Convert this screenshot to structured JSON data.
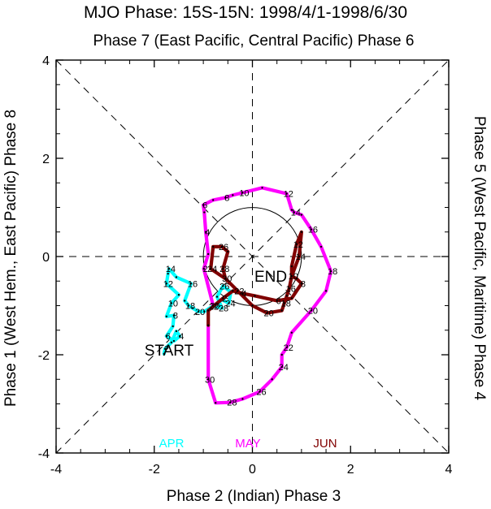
{
  "title": "MJO Phase: 15S-15N: 1998/4/1-1998/6/30",
  "subtitle": "Phase 7 (East Pacific, Central Pacific) Phase 6",
  "colors": {
    "apr": "#00ffff",
    "may": "#ff00ff",
    "jun": "#800000",
    "axis": "#000000"
  },
  "chart_data": {
    "type": "line",
    "title": "MJO Phase: 15S-15N: 1998/4/1-1998/6/30",
    "subtitle": "Phase 7 (East Pacific, Central Pacific) Phase 6",
    "xlabel": "Phase 2 (Indian) Phase 3",
    "ylabel": "Phase 1 (West Hem., East Pacific) Phase 8",
    "ylabel_right": "Phase 5 (West Pacific, Maritime) Phase 4",
    "xlim": [
      -4,
      4
    ],
    "ylim": [
      -4,
      4
    ],
    "x_ticks": [
      "-4",
      "-2",
      "0",
      "2",
      "4"
    ],
    "y_ticks": [
      "-4",
      "-2",
      "0",
      "2",
      "4"
    ],
    "grid": "diagonal and axis dashed lines",
    "legend": [
      "APR",
      "MAY",
      "JUN"
    ],
    "annotations": {
      "start": "START",
      "end": "END"
    },
    "series": [
      {
        "name": "APR",
        "color": "#00ffff",
        "x": [
          -1.8,
          -1.78,
          -1.65,
          -1.55,
          -1.48,
          -1.6,
          -1.75,
          -1.62,
          -1.6,
          -1.75,
          -1.65,
          -1.5,
          -1.75,
          -1.72,
          -1.7,
          -1.55,
          -1.25,
          -1.38,
          -1.3,
          -1.22,
          -1.1,
          -0.98,
          -0.82,
          -0.62,
          -0.48,
          -0.44,
          -0.6,
          -0.72,
          -0.62,
          -0.8
        ],
        "y": [
          -1.98,
          -1.88,
          -1.75,
          -1.52,
          -1.62,
          -1.72,
          -1.62,
          -1.42,
          -1.2,
          -1.22,
          -0.95,
          -0.78,
          -0.55,
          -0.35,
          -0.25,
          -0.42,
          -0.55,
          -0.9,
          -1.0,
          -1.05,
          -1.12,
          -1.12,
          -1.02,
          -0.88,
          -0.95,
          -0.72,
          -0.6,
          -0.82,
          -1.05,
          -1.0
        ]
      },
      {
        "name": "MAY",
        "color": "#ff00ff",
        "x": [
          -0.8,
          -0.99,
          -0.9,
          -0.95,
          -0.98,
          -1.0,
          -0.8,
          -0.55,
          -0.4,
          -0.2,
          0.2,
          0.7,
          0.8,
          0.85,
          1.0,
          1.2,
          1.4,
          1.6,
          1.5,
          1.2,
          0.8,
          0.7,
          0.6,
          0.6,
          0.4,
          0.15,
          -0.2,
          -0.45,
          -0.75,
          -0.9,
          -0.9
        ],
        "y": [
          -1.0,
          -0.25,
          0.05,
          0.5,
          0.9,
          1.05,
          1.15,
          1.2,
          1.25,
          1.3,
          1.4,
          1.28,
          0.95,
          0.9,
          0.85,
          0.55,
          0.2,
          -0.3,
          -0.7,
          -1.1,
          -1.55,
          -1.85,
          -2.0,
          -2.25,
          -2.5,
          -2.75,
          -2.9,
          -2.97,
          -2.98,
          -2.5,
          -1.4
        ]
      },
      {
        "name": "JUN",
        "color": "#800000",
        "x": [
          -0.9,
          -0.9,
          -0.6,
          -0.4,
          -0.2,
          0.05,
          0.5,
          0.8,
          1.0,
          0.9,
          0.8,
          0.8,
          0.9,
          1.0,
          0.95,
          0.8,
          0.75,
          0.7,
          0.65,
          0.6,
          0.3,
          0.0,
          -0.3,
          -0.55,
          -0.85,
          -0.8,
          -0.62,
          -0.5,
          -0.6,
          -0.55
        ],
        "y": [
          -1.4,
          -1.1,
          -0.85,
          -0.7,
          -0.75,
          -0.8,
          -0.9,
          -0.85,
          -0.55,
          -0.45,
          -0.4,
          -0.2,
          0.25,
          0.5,
          0.0,
          -0.4,
          -0.65,
          -0.8,
          -0.95,
          -1.1,
          -1.15,
          -1.0,
          -0.7,
          -0.45,
          -0.25,
          0.2,
          0.2,
          0.1,
          -0.25,
          -0.45
        ]
      }
    ],
    "day_labels": [
      {
        "month": "APR",
        "day": "2",
        "x": -1.78,
        "y": -1.88
      },
      {
        "month": "APR",
        "day": "4",
        "x": -1.48,
        "y": -1.62
      },
      {
        "month": "APR",
        "day": "6",
        "x": -1.75,
        "y": -1.62
      },
      {
        "month": "APR",
        "day": "8",
        "x": -1.6,
        "y": -1.2
      },
      {
        "month": "APR",
        "day": "10",
        "x": -1.65,
        "y": -0.95
      },
      {
        "month": "APR",
        "day": "12",
        "x": -1.75,
        "y": -0.55
      },
      {
        "month": "APR",
        "day": "14",
        "x": -1.7,
        "y": -0.25
      },
      {
        "month": "APR",
        "day": "16",
        "x": -1.25,
        "y": -0.55
      },
      {
        "month": "APR",
        "day": "18",
        "x": -1.3,
        "y": -1.0
      },
      {
        "month": "APR",
        "day": "20",
        "x": -1.1,
        "y": -1.12
      },
      {
        "month": "APR",
        "day": "22",
        "x": -0.82,
        "y": -1.02
      },
      {
        "month": "APR",
        "day": "24",
        "x": -0.48,
        "y": -0.95
      },
      {
        "month": "APR",
        "day": "26",
        "x": -0.6,
        "y": -0.6
      },
      {
        "month": "APR",
        "day": "28",
        "x": -0.62,
        "y": -1.05
      },
      {
        "month": "APR",
        "day": "30",
        "x": -0.8,
        "y": -1.0
      },
      {
        "month": "MAY",
        "day": "2",
        "x": -0.99,
        "y": -0.25
      },
      {
        "month": "MAY",
        "day": "4",
        "x": -0.95,
        "y": 0.5
      },
      {
        "month": "MAY",
        "day": "6",
        "x": -1.0,
        "y": 1.05
      },
      {
        "month": "MAY",
        "day": "8",
        "x": -0.55,
        "y": 1.2
      },
      {
        "month": "MAY",
        "day": "10",
        "x": -0.2,
        "y": 1.3
      },
      {
        "month": "MAY",
        "day": "12",
        "x": 0.7,
        "y": 1.28
      },
      {
        "month": "MAY",
        "day": "14",
        "x": 0.85,
        "y": 0.9
      },
      {
        "month": "MAY",
        "day": "16",
        "x": 1.2,
        "y": 0.55
      },
      {
        "month": "MAY",
        "day": "18",
        "x": 1.6,
        "y": -0.3
      },
      {
        "month": "MAY",
        "day": "20",
        "x": 1.2,
        "y": -1.1
      },
      {
        "month": "MAY",
        "day": "22",
        "x": 0.7,
        "y": -1.85
      },
      {
        "month": "MAY",
        "day": "24",
        "x": 0.6,
        "y": -2.25
      },
      {
        "month": "MAY",
        "day": "26",
        "x": 0.15,
        "y": -2.75
      },
      {
        "month": "MAY",
        "day": "28",
        "x": -0.45,
        "y": -2.97
      },
      {
        "month": "MAY",
        "day": "30",
        "x": -0.9,
        "y": -2.5
      },
      {
        "month": "JUN",
        "day": "2",
        "x": -0.6,
        "y": -0.85
      },
      {
        "month": "JUN",
        "day": "4",
        "x": -0.2,
        "y": -0.75
      },
      {
        "month": "JUN",
        "day": "6",
        "x": 0.5,
        "y": -0.9
      },
      {
        "month": "JUN",
        "day": "8",
        "x": 1.0,
        "y": -0.55
      },
      {
        "month": "JUN",
        "day": "10",
        "x": 0.8,
        "y": -0.4
      },
      {
        "month": "JUN",
        "day": "12",
        "x": 0.9,
        "y": 0.25
      },
      {
        "month": "JUN",
        "day": "14",
        "x": 0.95,
        "y": 0.0
      },
      {
        "month": "JUN",
        "day": "16",
        "x": 0.75,
        "y": -0.65
      },
      {
        "month": "JUN",
        "day": "18",
        "x": 0.65,
        "y": -0.95
      },
      {
        "month": "JUN",
        "day": "20",
        "x": 0.3,
        "y": -1.15
      },
      {
        "month": "JUN",
        "day": "22",
        "x": -0.3,
        "y": -0.7
      },
      {
        "month": "JUN",
        "day": "24",
        "x": -0.85,
        "y": -0.25
      },
      {
        "month": "JUN",
        "day": "26",
        "x": -0.62,
        "y": 0.2
      },
      {
        "month": "JUN",
        "day": "28",
        "x": -0.6,
        "y": -0.25
      },
      {
        "month": "JUN",
        "day": "30",
        "x": -0.55,
        "y": -0.45
      }
    ]
  }
}
